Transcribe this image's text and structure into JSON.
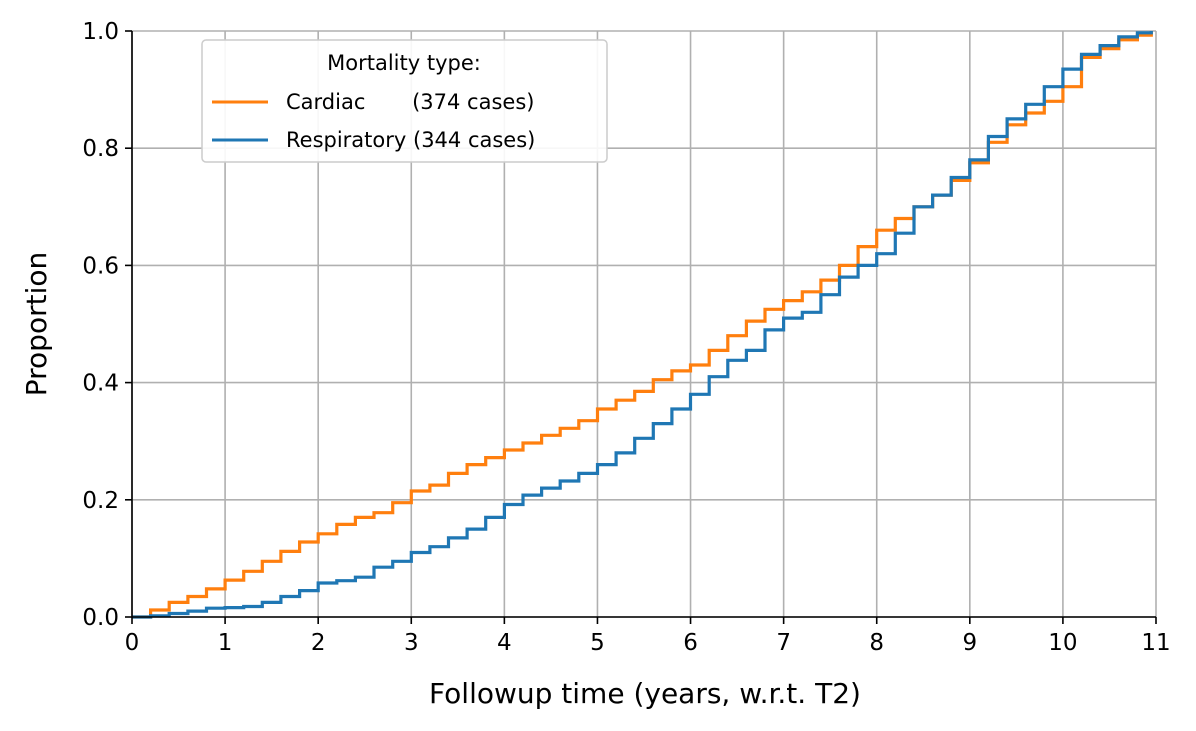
{
  "chart_data": {
    "type": "line",
    "xlabel": "Followup time (years, w.r.t. T2)",
    "ylabel": "Proportion",
    "xlim": [
      0,
      11
    ],
    "ylim": [
      0,
      1
    ],
    "xticks": [
      "0",
      "1",
      "2",
      "3",
      "4",
      "5",
      "6",
      "7",
      "8",
      "9",
      "10",
      "11"
    ],
    "yticks": [
      "0.0",
      "0.2",
      "0.4",
      "0.6",
      "0.8",
      "1.0"
    ],
    "grid": true,
    "legend": {
      "title": "Mortality type:",
      "placement": "top-left",
      "entries": [
        "Cardiac       (374 cases)",
        "Respiratory (344 cases)"
      ]
    },
    "series": [
      {
        "name": "Cardiac",
        "cases": 374,
        "color": "#ff7f0e",
        "x": [
          0,
          0.2,
          0.4,
          0.6,
          0.8,
          1.0,
          1.2,
          1.4,
          1.6,
          1.8,
          2.0,
          2.2,
          2.4,
          2.6,
          2.8,
          3.0,
          3.2,
          3.4,
          3.6,
          3.8,
          4.0,
          4.2,
          4.4,
          4.6,
          4.8,
          5.0,
          5.2,
          5.4,
          5.6,
          5.8,
          6.0,
          6.2,
          6.4,
          6.6,
          6.8,
          7.0,
          7.2,
          7.4,
          7.6,
          7.8,
          8.0,
          8.2,
          8.4,
          8.6,
          8.8,
          9.0,
          9.2,
          9.4,
          9.6,
          9.8,
          10.0,
          10.2,
          10.4,
          10.6,
          10.8,
          10.95
        ],
        "y": [
          0,
          0.012,
          0.025,
          0.035,
          0.048,
          0.063,
          0.078,
          0.095,
          0.112,
          0.128,
          0.142,
          0.158,
          0.17,
          0.178,
          0.195,
          0.215,
          0.225,
          0.245,
          0.26,
          0.272,
          0.285,
          0.297,
          0.31,
          0.322,
          0.335,
          0.355,
          0.37,
          0.385,
          0.405,
          0.42,
          0.43,
          0.455,
          0.48,
          0.505,
          0.525,
          0.54,
          0.555,
          0.575,
          0.6,
          0.632,
          0.66,
          0.68,
          0.7,
          0.72,
          0.745,
          0.775,
          0.81,
          0.84,
          0.86,
          0.88,
          0.905,
          0.955,
          0.97,
          0.985,
          0.993,
          1.0
        ]
      },
      {
        "name": "Respiratory",
        "cases": 344,
        "color": "#1f77b4",
        "x": [
          0,
          0.2,
          0.4,
          0.6,
          0.8,
          1.0,
          1.2,
          1.4,
          1.6,
          1.8,
          2.0,
          2.2,
          2.4,
          2.6,
          2.8,
          3.0,
          3.2,
          3.4,
          3.6,
          3.8,
          4.0,
          4.2,
          4.4,
          4.6,
          4.8,
          5.0,
          5.2,
          5.4,
          5.6,
          5.8,
          6.0,
          6.2,
          6.4,
          6.6,
          6.8,
          7.0,
          7.2,
          7.4,
          7.6,
          7.8,
          8.0,
          8.2,
          8.4,
          8.6,
          8.8,
          9.0,
          9.2,
          9.4,
          9.6,
          9.8,
          10.0,
          10.2,
          10.4,
          10.6,
          10.8,
          10.95
        ],
        "y": [
          0,
          0.002,
          0.006,
          0.01,
          0.015,
          0.016,
          0.018,
          0.025,
          0.035,
          0.045,
          0.058,
          0.062,
          0.068,
          0.085,
          0.095,
          0.11,
          0.12,
          0.135,
          0.15,
          0.17,
          0.192,
          0.208,
          0.22,
          0.232,
          0.245,
          0.26,
          0.28,
          0.305,
          0.33,
          0.355,
          0.38,
          0.41,
          0.438,
          0.455,
          0.49,
          0.51,
          0.52,
          0.55,
          0.58,
          0.6,
          0.62,
          0.655,
          0.7,
          0.72,
          0.75,
          0.78,
          0.82,
          0.85,
          0.875,
          0.905,
          0.935,
          0.96,
          0.975,
          0.99,
          0.997,
          1.0
        ]
      }
    ]
  }
}
